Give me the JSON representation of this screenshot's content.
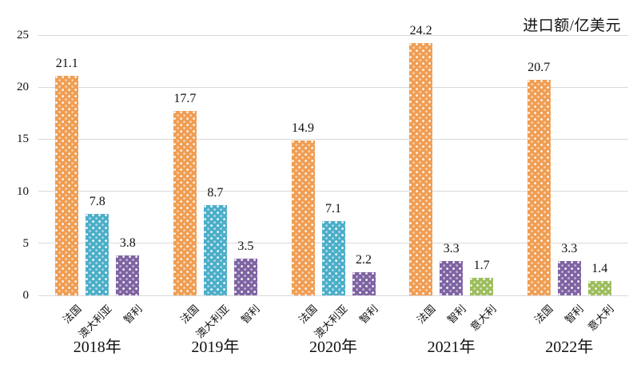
{
  "chart_data": {
    "type": "bar",
    "title": "进口额/亿美元",
    "xlabel": "",
    "ylabel": "进口额/亿美元",
    "ylim": [
      0,
      25
    ],
    "yticks": [
      0,
      5,
      10,
      15,
      20,
      25
    ],
    "grid": true,
    "legend_position": "none",
    "value_labels": "above bars",
    "bar_fill_pattern": "white-dots",
    "series_colors": {
      "法国": "#F09D52",
      "澳大利亚": "#4BAEC8",
      "智利": "#7E63A2",
      "意大利": "#9CBD5C"
    },
    "gridline_color": "#D9D9D9",
    "text_color": "#111111",
    "groups": [
      {
        "year": "2018年",
        "bars": [
          {
            "label": "法国",
            "value": 21.1
          },
          {
            "label": "澳大利亚",
            "value": 7.8
          },
          {
            "label": "智利",
            "value": 3.8
          }
        ]
      },
      {
        "year": "2019年",
        "bars": [
          {
            "label": "法国",
            "value": 17.7
          },
          {
            "label": "澳大利亚",
            "value": 8.7
          },
          {
            "label": "智利",
            "value": 3.5
          }
        ]
      },
      {
        "year": "2020年",
        "bars": [
          {
            "label": "法国",
            "value": 14.9
          },
          {
            "label": "澳大利亚",
            "value": 7.1
          },
          {
            "label": "智利",
            "value": 2.2
          }
        ]
      },
      {
        "year": "2021年",
        "bars": [
          {
            "label": "法国",
            "value": 24.2
          },
          {
            "label": "智利",
            "value": 3.3
          },
          {
            "label": "意大利",
            "value": 1.7
          }
        ]
      },
      {
        "year": "2022年",
        "bars": [
          {
            "label": "法国",
            "value": 20.7
          },
          {
            "label": "智利",
            "value": 3.3
          },
          {
            "label": "意大利",
            "value": 1.4
          }
        ]
      }
    ]
  }
}
